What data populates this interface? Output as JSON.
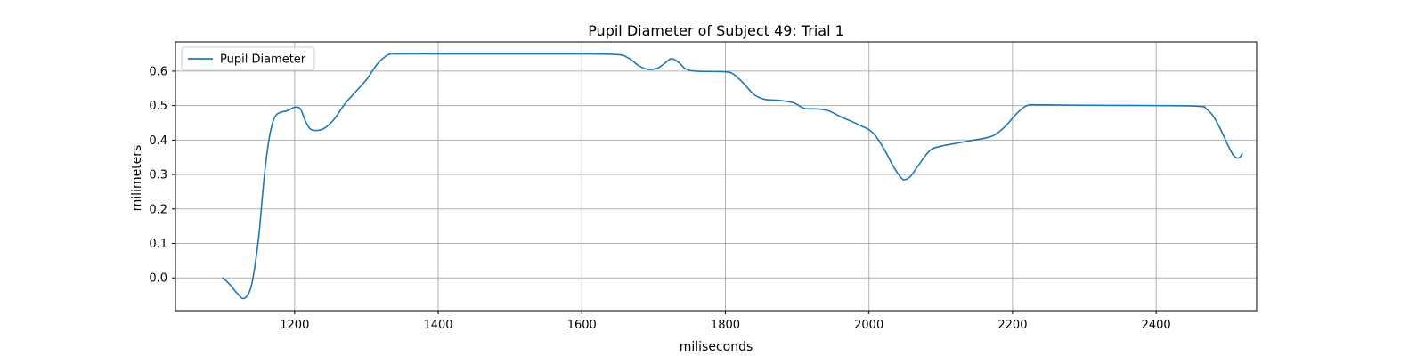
{
  "chart_data": {
    "type": "line",
    "title": "Pupil Diameter of Subject 49: Trial 1",
    "xlabel": "miliseconds",
    "ylabel": "milimeters",
    "xlim": [
      1034,
      2540
    ],
    "ylim": [
      -0.095,
      0.685
    ],
    "xticks": [
      1200,
      1400,
      1600,
      1800,
      2000,
      2200,
      2400
    ],
    "yticks": [
      0.0,
      0.1,
      0.2,
      0.3,
      0.4,
      0.5,
      0.6
    ],
    "xtick_labels": [
      "1200",
      "1400",
      "1600",
      "1800",
      "2000",
      "2200",
      "2400"
    ],
    "ytick_labels": [
      "0.0",
      "0.1",
      "0.2",
      "0.3",
      "0.4",
      "0.5",
      "0.6"
    ],
    "grid": true,
    "legend_position": "upper-left",
    "series": [
      {
        "name": "Pupil Diameter",
        "color": "#1f77b4",
        "points": [
          [
            1100,
            0.0
          ],
          [
            1110,
            -0.02
          ],
          [
            1120,
            -0.045
          ],
          [
            1128,
            -0.06
          ],
          [
            1136,
            -0.045
          ],
          [
            1142,
            0.0
          ],
          [
            1150,
            0.12
          ],
          [
            1158,
            0.3
          ],
          [
            1165,
            0.41
          ],
          [
            1172,
            0.465
          ],
          [
            1180,
            0.48
          ],
          [
            1190,
            0.485
          ],
          [
            1200,
            0.495
          ],
          [
            1208,
            0.49
          ],
          [
            1215,
            0.455
          ],
          [
            1222,
            0.432
          ],
          [
            1232,
            0.428
          ],
          [
            1242,
            0.435
          ],
          [
            1255,
            0.46
          ],
          [
            1270,
            0.505
          ],
          [
            1285,
            0.54
          ],
          [
            1300,
            0.575
          ],
          [
            1315,
            0.62
          ],
          [
            1330,
            0.647
          ],
          [
            1345,
            0.65
          ],
          [
            1400,
            0.65
          ],
          [
            1500,
            0.65
          ],
          [
            1600,
            0.65
          ],
          [
            1650,
            0.648
          ],
          [
            1665,
            0.638
          ],
          [
            1680,
            0.615
          ],
          [
            1692,
            0.605
          ],
          [
            1705,
            0.608
          ],
          [
            1715,
            0.622
          ],
          [
            1725,
            0.636
          ],
          [
            1735,
            0.625
          ],
          [
            1745,
            0.606
          ],
          [
            1760,
            0.6
          ],
          [
            1800,
            0.598
          ],
          [
            1812,
            0.59
          ],
          [
            1825,
            0.565
          ],
          [
            1840,
            0.532
          ],
          [
            1855,
            0.518
          ],
          [
            1875,
            0.515
          ],
          [
            1895,
            0.508
          ],
          [
            1910,
            0.492
          ],
          [
            1930,
            0.49
          ],
          [
            1945,
            0.484
          ],
          [
            1960,
            0.468
          ],
          [
            1975,
            0.455
          ],
          [
            1990,
            0.44
          ],
          [
            2000,
            0.43
          ],
          [
            2010,
            0.41
          ],
          [
            2022,
            0.37
          ],
          [
            2035,
            0.32
          ],
          [
            2045,
            0.29
          ],
          [
            2050,
            0.285
          ],
          [
            2058,
            0.295
          ],
          [
            2070,
            0.33
          ],
          [
            2085,
            0.37
          ],
          [
            2100,
            0.382
          ],
          [
            2120,
            0.39
          ],
          [
            2140,
            0.398
          ],
          [
            2160,
            0.405
          ],
          [
            2175,
            0.415
          ],
          [
            2190,
            0.44
          ],
          [
            2205,
            0.475
          ],
          [
            2220,
            0.5
          ],
          [
            2240,
            0.502
          ],
          [
            2300,
            0.501
          ],
          [
            2400,
            0.5
          ],
          [
            2460,
            0.498
          ],
          [
            2470,
            0.49
          ],
          [
            2480,
            0.468
          ],
          [
            2490,
            0.43
          ],
          [
            2500,
            0.385
          ],
          [
            2508,
            0.355
          ],
          [
            2515,
            0.348
          ],
          [
            2520,
            0.36
          ]
        ]
      }
    ]
  }
}
